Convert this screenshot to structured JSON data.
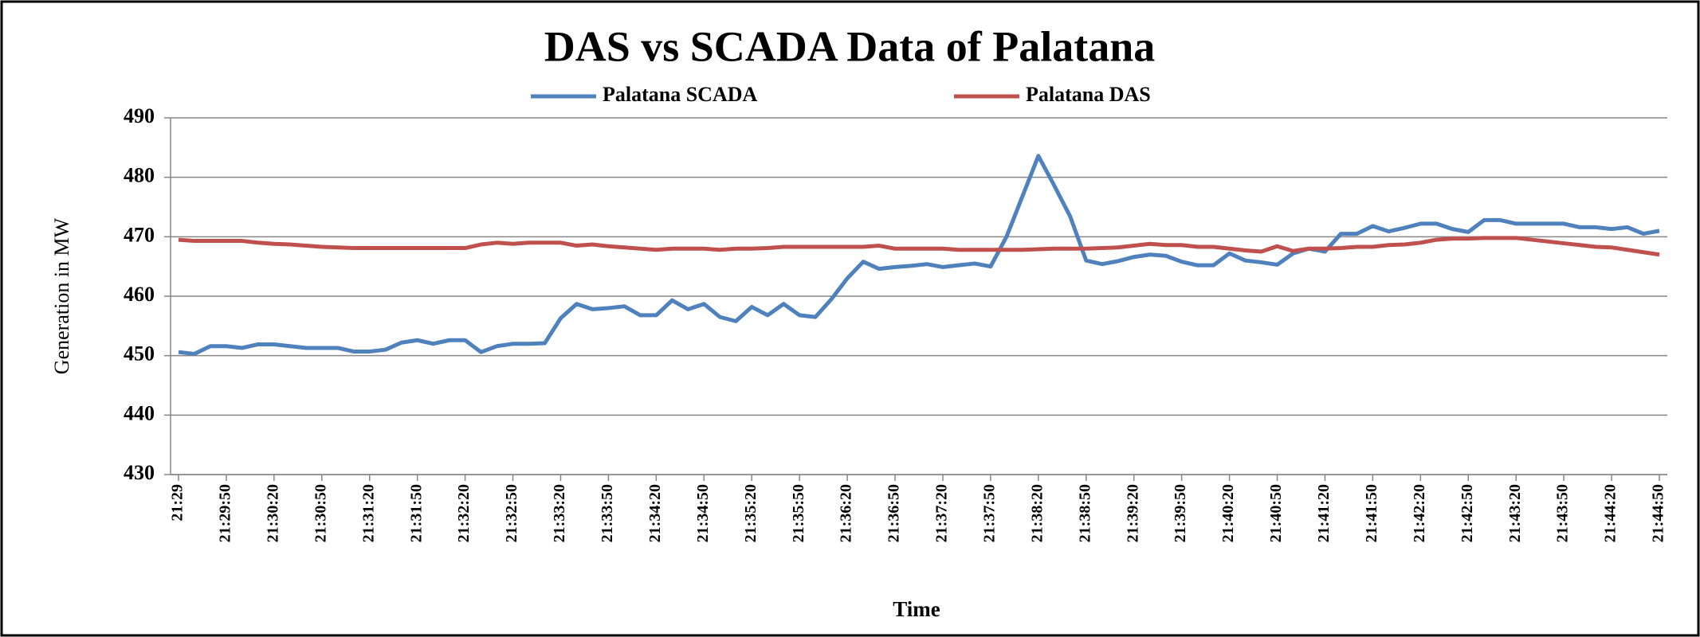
{
  "chart_data": {
    "type": "line",
    "title": "DAS vs SCADA Data of Palatana",
    "x_label": "Time",
    "y_label": "Generation in MW",
    "categories": [
      "21:29",
      null,
      null,
      "21:29:50",
      null,
      null,
      "21:30:20",
      null,
      null,
      "21:30:50",
      null,
      null,
      "21:31:20",
      null,
      null,
      "21:31:50",
      null,
      null,
      "21:32:20",
      null,
      null,
      "21:32:50",
      null,
      null,
      "21:33:20",
      null,
      null,
      "21:33:50",
      null,
      null,
      "21:34:20",
      null,
      null,
      "21:34:50",
      null,
      null,
      "21:35:20",
      null,
      null,
      "21:35:50",
      null,
      null,
      "21:36:20",
      null,
      null,
      "21:36:50",
      null,
      null,
      "21:37:20",
      null,
      null,
      "21:37:50",
      null,
      null,
      "21:38:20",
      null,
      null,
      "21:38:50",
      null,
      null,
      "21:39:20",
      null,
      null,
      "21:39:50",
      null,
      null,
      "21:40:20",
      null,
      null,
      "21:40:50",
      null,
      null,
      "21:41:20",
      null,
      null,
      "21:41:50",
      null,
      null,
      "21:42:20",
      null,
      null,
      "21:42:50",
      null,
      null,
      "21:43:20",
      null,
      null,
      "21:43:50",
      null,
      null,
      "21:44:20",
      null,
      null,
      "21:44:50"
    ],
    "series": [
      {
        "name": "Palatana SCADA",
        "color": "#4f81bd",
        "values": [
          450.6,
          450.3,
          451.6,
          451.6,
          451.3,
          451.9,
          451.9,
          451.6,
          451.3,
          451.3,
          451.3,
          450.7,
          450.7,
          451.0,
          452.2,
          452.6,
          452.0,
          452.6,
          452.6,
          450.6,
          451.6,
          452.0,
          452.0,
          452.1,
          456.3,
          458.7,
          457.8,
          458.0,
          458.3,
          456.8,
          456.8,
          459.3,
          457.8,
          458.7,
          456.5,
          455.8,
          458.2,
          456.8,
          458.7,
          456.8,
          456.5,
          459.5,
          463.0,
          465.8,
          464.6,
          464.9,
          465.1,
          465.4,
          464.9,
          465.2,
          465.5,
          465.0,
          470.0,
          476.8,
          483.6,
          478.6,
          473.4,
          466.0,
          465.4,
          465.9,
          466.6,
          467.0,
          466.8,
          465.8,
          465.2,
          465.2,
          467.2,
          466.0,
          465.7,
          465.3,
          467.2,
          468.0,
          467.5,
          470.5,
          470.5,
          471.8,
          470.9,
          471.5,
          472.2,
          472.2,
          471.3,
          470.8,
          472.8,
          472.8,
          472.2,
          472.2,
          472.2,
          472.2,
          471.6,
          471.6,
          471.3,
          471.6,
          470.5,
          471.0
        ]
      },
      {
        "name": "Palatana DAS",
        "color": "#c0504d",
        "values": [
          469.5,
          469.3,
          469.3,
          469.3,
          469.3,
          469.0,
          468.8,
          468.7,
          468.5,
          468.3,
          468.2,
          468.1,
          468.1,
          468.1,
          468.1,
          468.1,
          468.1,
          468.1,
          468.1,
          468.7,
          469.0,
          468.8,
          469.0,
          469.0,
          469.0,
          468.5,
          468.7,
          468.4,
          468.2,
          468.0,
          467.8,
          468.0,
          468.0,
          468.0,
          467.8,
          468.0,
          468.0,
          468.1,
          468.3,
          468.3,
          468.3,
          468.3,
          468.3,
          468.3,
          468.5,
          468.0,
          468.0,
          468.0,
          468.0,
          467.8,
          467.8,
          467.8,
          467.8,
          467.8,
          467.9,
          468.0,
          468.0,
          468.0,
          468.1,
          468.2,
          468.5,
          468.8,
          468.6,
          468.6,
          468.3,
          468.3,
          468.0,
          467.7,
          467.5,
          468.4,
          467.6,
          468.0,
          468.0,
          468.1,
          468.3,
          468.3,
          468.6,
          468.7,
          469.0,
          469.5,
          469.7,
          469.7,
          469.8,
          469.8,
          469.8,
          469.5,
          469.2,
          468.9,
          468.6,
          468.3,
          468.2,
          467.8,
          467.4,
          467.0
        ]
      }
    ],
    "ylim": [
      430,
      490
    ],
    "yticks": [
      430,
      440,
      450,
      460,
      470,
      480,
      490
    ],
    "grid": true,
    "legend": "top"
  }
}
